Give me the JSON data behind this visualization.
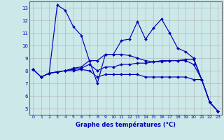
{
  "title": "Graphe des températures (°C)",
  "bg_color": "#cce8e8",
  "grid_color": "#b0b0b0",
  "line_color": "#0000bb",
  "xlim": [
    -0.5,
    23.5
  ],
  "ylim": [
    4.5,
    13.5
  ],
  "yticks": [
    5,
    6,
    7,
    8,
    9,
    10,
    11,
    12,
    13
  ],
  "xticks": [
    0,
    1,
    2,
    3,
    4,
    5,
    6,
    7,
    8,
    9,
    10,
    11,
    12,
    13,
    14,
    15,
    16,
    17,
    18,
    19,
    20,
    21,
    22,
    23
  ],
  "series": [
    [
      8.1,
      7.5,
      7.8,
      13.2,
      12.8,
      11.5,
      10.8,
      8.8,
      7.0,
      9.3,
      9.3,
      10.4,
      10.5,
      11.9,
      10.5,
      11.4,
      12.1,
      11.0,
      9.8,
      9.5,
      9.0,
      7.3,
      5.5,
      4.8
    ],
    [
      8.1,
      7.5,
      7.8,
      7.9,
      8.0,
      8.2,
      8.3,
      8.8,
      8.8,
      9.3,
      9.3,
      9.3,
      9.2,
      9.0,
      8.8,
      8.7,
      8.8,
      8.8,
      8.8,
      8.9,
      8.9,
      7.3,
      5.5,
      4.8
    ],
    [
      8.1,
      7.5,
      7.8,
      7.9,
      8.0,
      8.0,
      8.1,
      8.0,
      7.5,
      7.7,
      7.7,
      7.7,
      7.7,
      7.7,
      7.5,
      7.5,
      7.5,
      7.5,
      7.5,
      7.5,
      7.3,
      7.3,
      5.5,
      4.8
    ],
    [
      8.1,
      7.5,
      7.8,
      7.9,
      8.0,
      8.1,
      8.2,
      8.5,
      8.0,
      8.3,
      8.3,
      8.5,
      8.5,
      8.6,
      8.6,
      8.7,
      8.7,
      8.8,
      8.8,
      8.8,
      8.5,
      7.3,
      5.5,
      4.8
    ]
  ]
}
